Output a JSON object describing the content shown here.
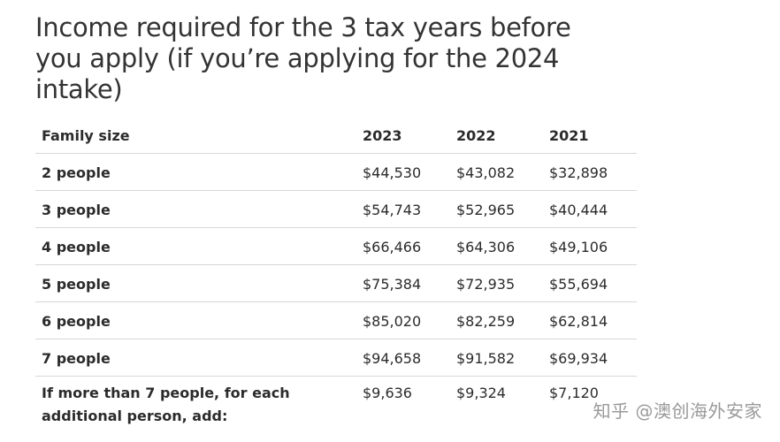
{
  "title": "Income required for the 3 tax years before you apply (if you’re applying for the 2024 intake)",
  "table": {
    "headers": [
      "Family size",
      "2023",
      "2022",
      "2021"
    ],
    "rows": [
      {
        "size": "2 people",
        "y2023": "$44,530",
        "y2022": "$43,082",
        "y2021": "$32,898"
      },
      {
        "size": "3 people",
        "y2023": "$54,743",
        "y2022": "$52,965",
        "y2021": "$40,444"
      },
      {
        "size": "4 people",
        "y2023": "$66,466",
        "y2022": "$64,306",
        "y2021": "$49,106"
      },
      {
        "size": "5 people",
        "y2023": "$75,384",
        "y2022": "$72,935",
        "y2021": "$55,694"
      },
      {
        "size": "6 people",
        "y2023": "$85,020",
        "y2022": "$82,259",
        "y2021": "$62,814"
      },
      {
        "size": "7 people",
        "y2023": "$94,658",
        "y2022": "$91,582",
        "y2021": "$69,934"
      },
      {
        "size": "If more than 7 people, for each additional person, add:",
        "y2023": "$9,636",
        "y2022": "$9,324",
        "y2021": "$7,120"
      }
    ]
  },
  "watermark": "知乎 @澳创海外安家"
}
